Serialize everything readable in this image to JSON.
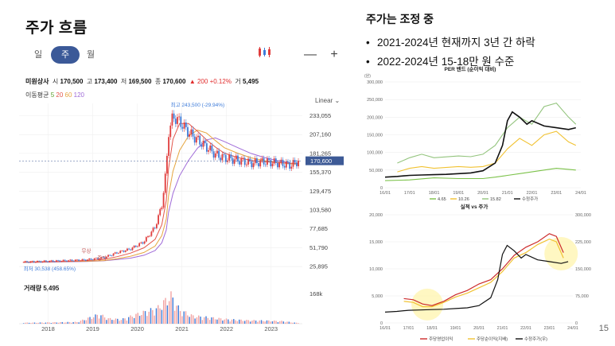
{
  "page": {
    "title": "주가 흐름",
    "right_title": "주가는 조정 중",
    "bullets": [
      "2021-2024년 현재까지 3년 간 하락",
      "2022-2024년 15-18만 원 수준"
    ],
    "page_number": "15"
  },
  "stock_widget": {
    "tabs": [
      {
        "label": "일",
        "active": false
      },
      {
        "label": "주",
        "active": true
      },
      {
        "label": "월",
        "active": false
      }
    ],
    "tools": {
      "chart_type_icon": "candlestick-icon",
      "zoom_out": "—",
      "zoom_in": "+"
    },
    "info": {
      "name": "미원상사",
      "open_label": "시",
      "open": "170,500",
      "high_label": "고",
      "high": "173,400",
      "low_label": "저",
      "low": "169,500",
      "close_label": "종",
      "close": "170,600",
      "change": "▲ 200",
      "change_pct": "+0.12%",
      "volume_label": "거",
      "volume": "5,495"
    },
    "moving_average": {
      "label": "이동평균",
      "periods": [
        "5",
        "20",
        "60",
        "120"
      ],
      "colors": [
        "#5aa02c",
        "#e2554a",
        "#e6a640",
        "#a06bd8"
      ]
    },
    "scale_toggle": "Linear ⌄",
    "volume_title": "거래량",
    "volume_value": "5,495",
    "up_color": "#e03c3c",
    "down_color": "#3d7bd9"
  },
  "chart_data": [
    {
      "type": "line",
      "title": "",
      "x_ticks": [
        "2018",
        "2019",
        "2020",
        "2021",
        "2022",
        "2023"
      ],
      "y_ticks": [
        "233,055",
        "207,160",
        "181,265",
        "155,370",
        "129,475",
        "103,580",
        "77,685",
        "51,790",
        "25,895"
      ],
      "ylim": [
        25895,
        233055
      ],
      "current_price": "170,600",
      "annotations": {
        "high": "최고 243,500 (-29.94%)",
        "low": "최저 30,538 (458.65%)",
        "markers": [
          "무상",
          "증자"
        ]
      },
      "series": [
        {
          "name": "주가",
          "x": [
            2017.8,
            2018.3,
            2018.8,
            2019.2,
            2019.6,
            2019.9,
            2020.2,
            2020.5,
            2020.75,
            2020.9,
            2021.0,
            2021.05,
            2021.15,
            2021.3,
            2021.5,
            2021.7,
            2021.9,
            2022.1,
            2022.3,
            2022.6,
            2022.9,
            2023.2,
            2023.5,
            2023.8,
            2023.95
          ],
          "values": [
            32000,
            33000,
            34000,
            35000,
            38000,
            45000,
            50000,
            60000,
            80000,
            110000,
            160000,
            210000,
            232000,
            225000,
            210000,
            200000,
            190000,
            180000,
            175000,
            172000,
            168000,
            170000,
            168000,
            165000,
            170600
          ]
        }
      ],
      "volume": {
        "ylabel": "168k",
        "x": [
          2018.0,
          2018.5,
          2019.0,
          2019.5,
          2019.7,
          2020.0,
          2020.4,
          2020.8,
          2021.0,
          2021.1,
          2021.3,
          2021.6,
          2022.0,
          2022.4,
          2022.8,
          2023.2,
          2023.6,
          2023.9
        ],
        "values": [
          6,
          8,
          10,
          55,
          30,
          25,
          60,
          90,
          140,
          168,
          80,
          45,
          35,
          25,
          20,
          18,
          15,
          5.5
        ]
      }
    },
    {
      "type": "line",
      "title": "PER 밴드 (순이익 대비)",
      "y_unit": "(원)",
      "x_ticks": [
        "16/01",
        "17/01",
        "18/01",
        "19/01",
        "20/01",
        "21/01",
        "22/01",
        "23/01",
        "24/01"
      ],
      "y_ticks": [
        "300,000",
        "250,000",
        "200,000",
        "150,000",
        "100,000",
        "50,000",
        "0"
      ],
      "ylim": [
        0,
        300000
      ],
      "series": [
        {
          "name": "4.65",
          "color": "#7cc24a",
          "x": [
            2016.0,
            2017.0,
            2018.0,
            2019.0,
            2020.0,
            2020.5,
            2021.0,
            2021.5,
            2022.0,
            2022.5,
            2023.0,
            2023.5,
            2023.8
          ],
          "values": [
            20000,
            22000,
            28000,
            26000,
            26000,
            30000,
            35000,
            40000,
            45000,
            50000,
            55000,
            52000,
            50000
          ]
        },
        {
          "name": "10.26",
          "color": "#f1c232",
          "x": [
            2016.5,
            2017.0,
            2017.5,
            2018.0,
            2019.0,
            2019.5,
            2020.0,
            2020.5,
            2021.0,
            2021.5,
            2022.0,
            2022.5,
            2023.0,
            2023.5,
            2023.8
          ],
          "values": [
            45000,
            55000,
            60000,
            55000,
            60000,
            58000,
            60000,
            70000,
            110000,
            140000,
            120000,
            150000,
            160000,
            130000,
            120000
          ]
        },
        {
          "name": "15.82",
          "color": "#93c47d",
          "x": [
            2016.5,
            2017.0,
            2017.5,
            2018.0,
            2019.0,
            2019.5,
            2020.0,
            2020.5,
            2021.0,
            2021.5,
            2022.0,
            2022.5,
            2023.0,
            2023.5,
            2023.8
          ],
          "values": [
            70000,
            85000,
            95000,
            85000,
            90000,
            88000,
            95000,
            120000,
            170000,
            200000,
            180000,
            230000,
            240000,
            200000,
            180000
          ]
        },
        {
          "name": "수정주가",
          "color": "#111111",
          "x": [
            2016.0,
            2016.5,
            2017.0,
            2017.5,
            2018.0,
            2018.5,
            2019.0,
            2019.5,
            2020.0,
            2020.5,
            2020.8,
            2021.0,
            2021.2,
            2021.5,
            2021.8,
            2022.0,
            2022.5,
            2023.0,
            2023.5,
            2023.8
          ],
          "values": [
            30000,
            32000,
            35000,
            36000,
            37000,
            38000,
            40000,
            42000,
            48000,
            70000,
            120000,
            190000,
            215000,
            200000,
            180000,
            190000,
            175000,
            170000,
            165000,
            170000
          ]
        }
      ]
    },
    {
      "type": "line",
      "title": "실적 vs 주가",
      "x_ticks": [
        "16/01",
        "17/01",
        "18/01",
        "19/01",
        "20/01",
        "21/01",
        "22/01",
        "23/01",
        "24/01"
      ],
      "y_ticks_left": [
        "20,000",
        "15,000",
        "10,000",
        "5,000",
        "0"
      ],
      "y_ticks_right": [
        "300,000",
        "225,000",
        "150,000",
        "75,000",
        "0"
      ],
      "ylim_left": [
        0,
        20000
      ],
      "ylim_right": [
        0,
        300000
      ],
      "series": [
        {
          "name": "주당영업이익",
          "color": "#cc2b2b",
          "axis": "left",
          "x": [
            2016.8,
            2017.2,
            2017.6,
            2018.0,
            2018.5,
            2019.0,
            2019.5,
            2020.0,
            2020.5,
            2021.0,
            2021.5,
            2022.0,
            2022.5,
            2023.0,
            2023.3,
            2023.6
          ],
          "values": [
            4500,
            4300,
            3500,
            3200,
            4000,
            5200,
            6000,
            7200,
            8000,
            10000,
            12500,
            14000,
            15000,
            16500,
            16000,
            13000
          ]
        },
        {
          "name": "주당순이익(지배)",
          "color": "#f1c232",
          "axis": "left",
          "x": [
            2016.8,
            2017.2,
            2017.6,
            2018.0,
            2018.5,
            2019.0,
            2019.5,
            2020.0,
            2020.5,
            2021.0,
            2021.5,
            2022.0,
            2022.5,
            2023.0,
            2023.3,
            2023.6
          ],
          "values": [
            4000,
            3800,
            3000,
            3000,
            3800,
            4800,
            5500,
            6500,
            7500,
            9500,
            12000,
            13000,
            14500,
            15500,
            15000,
            12000
          ]
        },
        {
          "name": "수정주가(우)",
          "color": "#111111",
          "axis": "right",
          "x": [
            2016.0,
            2016.5,
            2017.0,
            2017.5,
            2018.0,
            2018.5,
            2019.0,
            2019.5,
            2020.0,
            2020.5,
            2020.8,
            2021.0,
            2021.2,
            2021.5,
            2021.8,
            2022.0,
            2022.5,
            2023.0,
            2023.5,
            2023.8
          ],
          "values": [
            30000,
            32000,
            35000,
            36000,
            37000,
            38000,
            40000,
            42000,
            48000,
            70000,
            120000,
            190000,
            215000,
            200000,
            180000,
            190000,
            175000,
            170000,
            165000,
            170000
          ]
        }
      ]
    }
  ]
}
